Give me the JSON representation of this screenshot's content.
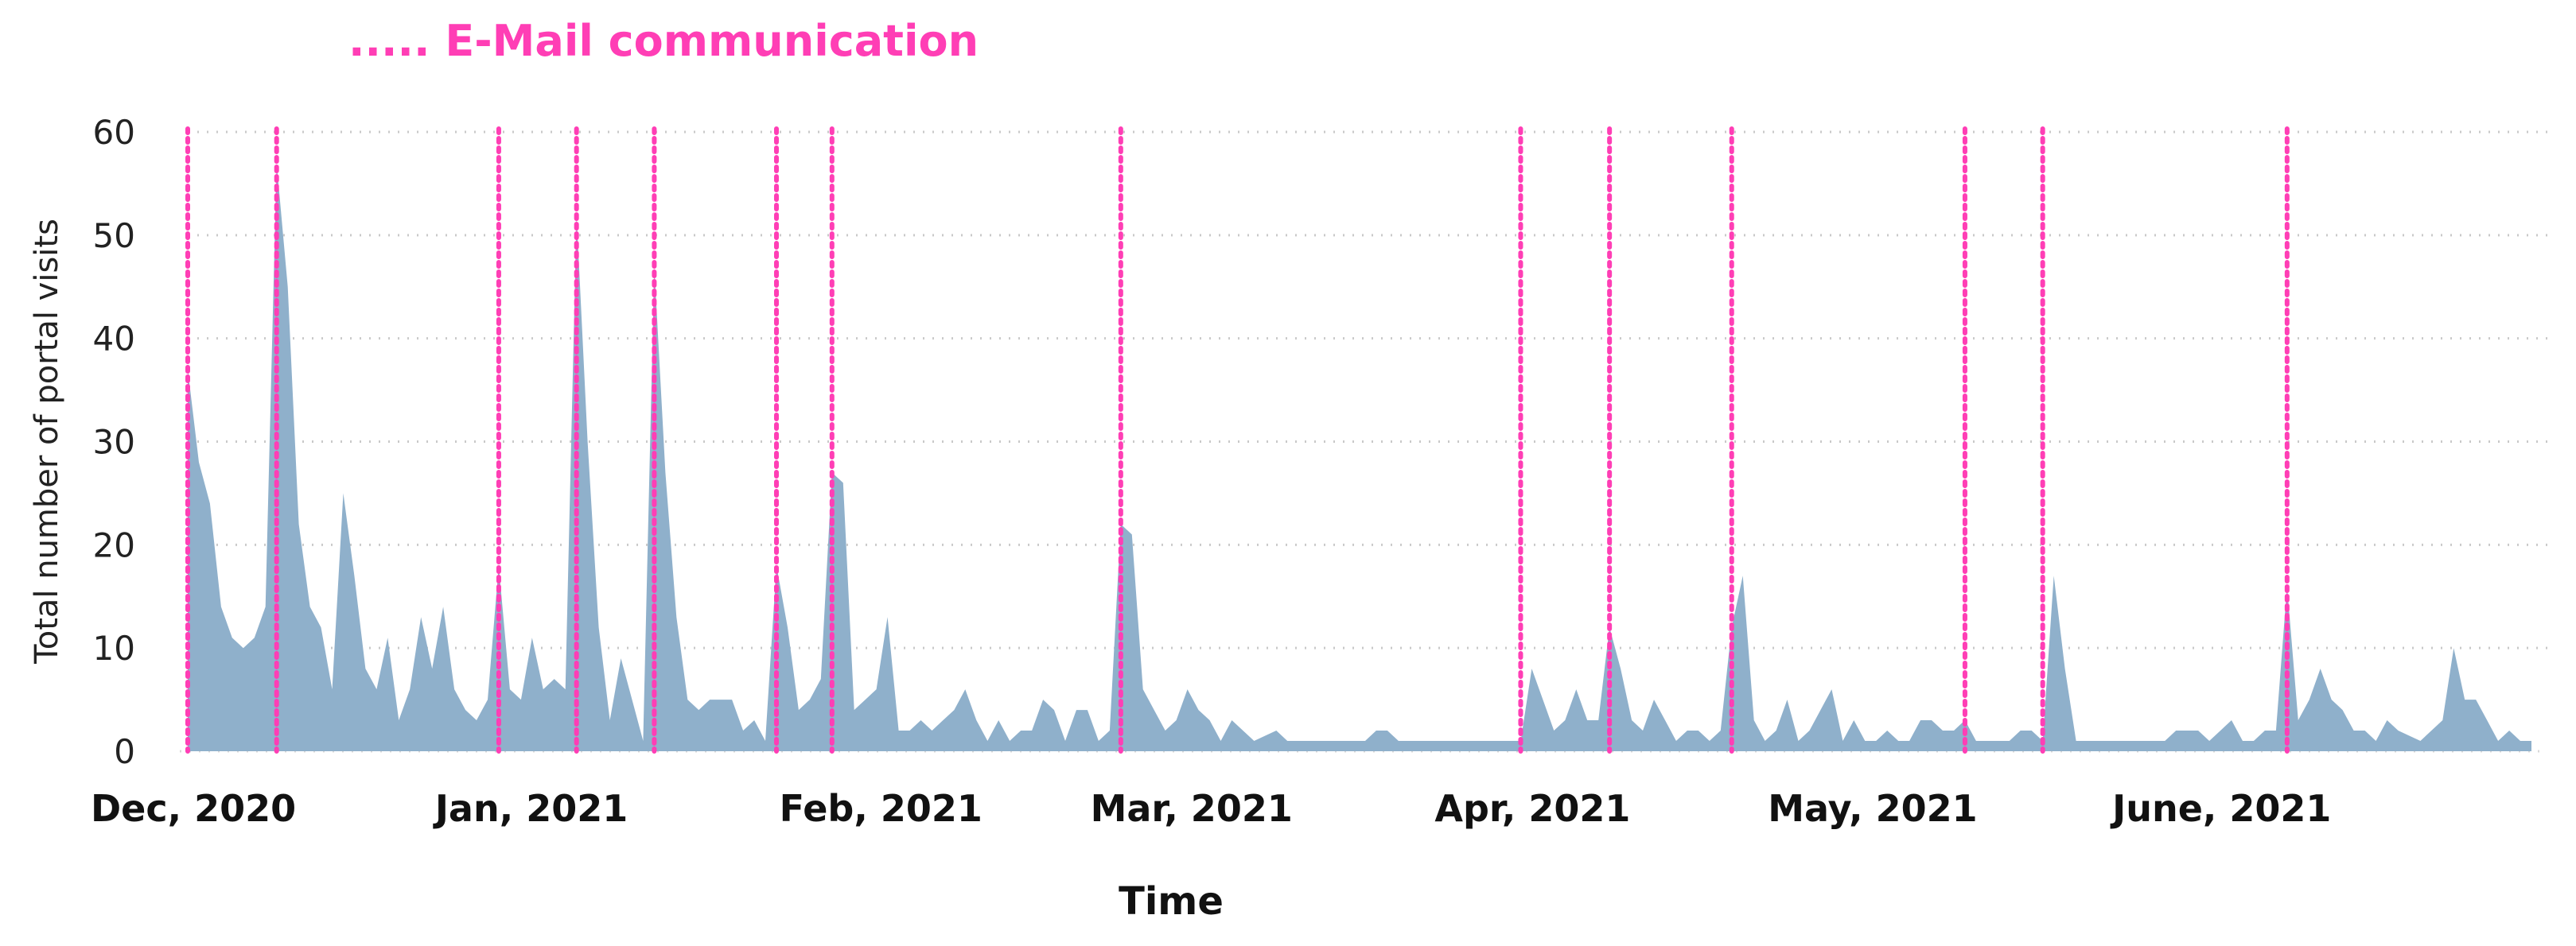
{
  "legend": {
    "label": "..... E-Mail communication",
    "color": "#ff3eb5"
  },
  "chart_data": {
    "type": "area",
    "xlabel": "Time",
    "ylabel": "Total number of portal visits",
    "ylim": [
      0,
      60
    ],
    "y_ticks": [
      0,
      10,
      20,
      30,
      40,
      50,
      60
    ],
    "grid": "horizontal dotted",
    "area_color": "#8fb0cb",
    "x_range": [
      "2020-12-01",
      "2021-06-30"
    ],
    "x_tick_labels": [
      {
        "label": "Dec, 2020",
        "date": "2020-12-01"
      },
      {
        "label": "Jan, 2021",
        "date": "2021-01-01"
      },
      {
        "label": "Feb, 2021",
        "date": "2021-02-01"
      },
      {
        "label": "Mar, 2021",
        "date": "2021-03-01"
      },
      {
        "label": "Apr, 2021",
        "date": "2021-04-01"
      },
      {
        "label": "May, 2021",
        "date": "2021-05-01"
      },
      {
        "label": "June, 2021",
        "date": "2021-06-01"
      }
    ],
    "series": [
      {
        "points": [
          [
            "2020-12-01",
            37
          ],
          [
            "2020-12-02",
            28
          ],
          [
            "2020-12-03",
            24
          ],
          [
            "2020-12-04",
            14
          ],
          [
            "2020-12-05",
            11
          ],
          [
            "2020-12-06",
            10
          ],
          [
            "2020-12-07",
            11
          ],
          [
            "2020-12-08",
            14
          ],
          [
            "2020-12-09",
            57
          ],
          [
            "2020-12-10",
            45
          ],
          [
            "2020-12-11",
            22
          ],
          [
            "2020-12-12",
            14
          ],
          [
            "2020-12-13",
            12
          ],
          [
            "2020-12-14",
            6
          ],
          [
            "2020-12-15",
            25
          ],
          [
            "2020-12-16",
            17
          ],
          [
            "2020-12-17",
            8
          ],
          [
            "2020-12-18",
            6
          ],
          [
            "2020-12-19",
            11
          ],
          [
            "2020-12-20",
            3
          ],
          [
            "2020-12-21",
            6
          ],
          [
            "2020-12-22",
            13
          ],
          [
            "2020-12-23",
            8
          ],
          [
            "2020-12-24",
            14
          ],
          [
            "2020-12-25",
            6
          ],
          [
            "2020-12-26",
            4
          ],
          [
            "2020-12-27",
            3
          ],
          [
            "2020-12-28",
            5
          ],
          [
            "2020-12-29",
            18
          ],
          [
            "2020-12-30",
            6
          ],
          [
            "2020-12-31",
            5
          ],
          [
            "2021-01-01",
            11
          ],
          [
            "2021-01-02",
            6
          ],
          [
            "2021-01-03",
            7
          ],
          [
            "2021-01-04",
            6
          ],
          [
            "2021-01-05",
            52
          ],
          [
            "2021-01-06",
            30
          ],
          [
            "2021-01-07",
            12
          ],
          [
            "2021-01-08",
            3
          ],
          [
            "2021-01-09",
            9
          ],
          [
            "2021-01-10",
            5
          ],
          [
            "2021-01-11",
            1
          ],
          [
            "2021-01-12",
            47
          ],
          [
            "2021-01-13",
            27
          ],
          [
            "2021-01-14",
            13
          ],
          [
            "2021-01-15",
            5
          ],
          [
            "2021-01-16",
            4
          ],
          [
            "2021-01-17",
            5
          ],
          [
            "2021-01-18",
            5
          ],
          [
            "2021-01-19",
            5
          ],
          [
            "2021-01-20",
            2
          ],
          [
            "2021-01-21",
            3
          ],
          [
            "2021-01-22",
            1
          ],
          [
            "2021-01-23",
            18
          ],
          [
            "2021-01-24",
            12
          ],
          [
            "2021-01-25",
            4
          ],
          [
            "2021-01-26",
            5
          ],
          [
            "2021-01-27",
            7
          ],
          [
            "2021-01-28",
            27
          ],
          [
            "2021-01-29",
            26
          ],
          [
            "2021-01-30",
            4
          ],
          [
            "2021-01-31",
            5
          ],
          [
            "2021-02-01",
            6
          ],
          [
            "2021-02-02",
            13
          ],
          [
            "2021-02-03",
            2
          ],
          [
            "2021-02-04",
            2
          ],
          [
            "2021-02-05",
            3
          ],
          [
            "2021-02-06",
            2
          ],
          [
            "2021-02-07",
            3
          ],
          [
            "2021-02-08",
            4
          ],
          [
            "2021-02-09",
            6
          ],
          [
            "2021-02-10",
            3
          ],
          [
            "2021-02-11",
            1
          ],
          [
            "2021-02-12",
            3
          ],
          [
            "2021-02-13",
            1
          ],
          [
            "2021-02-14",
            2
          ],
          [
            "2021-02-15",
            2
          ],
          [
            "2021-02-16",
            5
          ],
          [
            "2021-02-17",
            4
          ],
          [
            "2021-02-18",
            1
          ],
          [
            "2021-02-19",
            4
          ],
          [
            "2021-02-20",
            4
          ],
          [
            "2021-02-21",
            1
          ],
          [
            "2021-02-22",
            2
          ],
          [
            "2021-02-23",
            22
          ],
          [
            "2021-02-24",
            21
          ],
          [
            "2021-02-25",
            6
          ],
          [
            "2021-02-26",
            4
          ],
          [
            "2021-02-27",
            2
          ],
          [
            "2021-02-28",
            3
          ],
          [
            "2021-03-01",
            6
          ],
          [
            "2021-03-02",
            4
          ],
          [
            "2021-03-03",
            3
          ],
          [
            "2021-03-04",
            1
          ],
          [
            "2021-03-05",
            3
          ],
          [
            "2021-03-06",
            2
          ],
          [
            "2021-03-07",
            1
          ],
          [
            "2021-03-08",
            1.5
          ],
          [
            "2021-03-09",
            2
          ],
          [
            "2021-03-10",
            1
          ],
          [
            "2021-03-11",
            1
          ],
          [
            "2021-03-12",
            1
          ],
          [
            "2021-03-13",
            1
          ],
          [
            "2021-03-14",
            1
          ],
          [
            "2021-03-15",
            1
          ],
          [
            "2021-03-16",
            1
          ],
          [
            "2021-03-17",
            1
          ],
          [
            "2021-03-18",
            2
          ],
          [
            "2021-03-19",
            2
          ],
          [
            "2021-03-20",
            1
          ],
          [
            "2021-03-21",
            1
          ],
          [
            "2021-03-22",
            1
          ],
          [
            "2021-03-23",
            1
          ],
          [
            "2021-03-24",
            1
          ],
          [
            "2021-03-25",
            1
          ],
          [
            "2021-03-26",
            1
          ],
          [
            "2021-03-27",
            1
          ],
          [
            "2021-03-28",
            1
          ],
          [
            "2021-03-29",
            1
          ],
          [
            "2021-03-30",
            1
          ],
          [
            "2021-03-31",
            1
          ],
          [
            "2021-04-01",
            8
          ],
          [
            "2021-04-02",
            5
          ],
          [
            "2021-04-03",
            2
          ],
          [
            "2021-04-04",
            3
          ],
          [
            "2021-04-05",
            6
          ],
          [
            "2021-04-06",
            3
          ],
          [
            "2021-04-07",
            3
          ],
          [
            "2021-04-08",
            12
          ],
          [
            "2021-04-09",
            8
          ],
          [
            "2021-04-10",
            3
          ],
          [
            "2021-04-11",
            2
          ],
          [
            "2021-04-12",
            5
          ],
          [
            "2021-04-13",
            3
          ],
          [
            "2021-04-14",
            1
          ],
          [
            "2021-04-15",
            2
          ],
          [
            "2021-04-16",
            2
          ],
          [
            "2021-04-17",
            1
          ],
          [
            "2021-04-18",
            2
          ],
          [
            "2021-04-19",
            12
          ],
          [
            "2021-04-20",
            17
          ],
          [
            "2021-04-21",
            3
          ],
          [
            "2021-04-22",
            1
          ],
          [
            "2021-04-23",
            2
          ],
          [
            "2021-04-24",
            5
          ],
          [
            "2021-04-25",
            1
          ],
          [
            "2021-04-26",
            2
          ],
          [
            "2021-04-27",
            4
          ],
          [
            "2021-04-28",
            6
          ],
          [
            "2021-04-29",
            1
          ],
          [
            "2021-04-30",
            3
          ],
          [
            "2021-05-01",
            1
          ],
          [
            "2021-05-02",
            1
          ],
          [
            "2021-05-03",
            2
          ],
          [
            "2021-05-04",
            1
          ],
          [
            "2021-05-05",
            1
          ],
          [
            "2021-05-06",
            3
          ],
          [
            "2021-05-07",
            3
          ],
          [
            "2021-05-08",
            2
          ],
          [
            "2021-05-09",
            2
          ],
          [
            "2021-05-10",
            3
          ],
          [
            "2021-05-11",
            1
          ],
          [
            "2021-05-12",
            1
          ],
          [
            "2021-05-13",
            1
          ],
          [
            "2021-05-14",
            1
          ],
          [
            "2021-05-15",
            2
          ],
          [
            "2021-05-16",
            2
          ],
          [
            "2021-05-17",
            1
          ],
          [
            "2021-05-18",
            17
          ],
          [
            "2021-05-19",
            8
          ],
          [
            "2021-05-20",
            1
          ],
          [
            "2021-05-21",
            1
          ],
          [
            "2021-05-22",
            1
          ],
          [
            "2021-05-23",
            1
          ],
          [
            "2021-05-24",
            1
          ],
          [
            "2021-05-25",
            1
          ],
          [
            "2021-05-26",
            1
          ],
          [
            "2021-05-27",
            1
          ],
          [
            "2021-05-28",
            1
          ],
          [
            "2021-05-29",
            2
          ],
          [
            "2021-05-30",
            2
          ],
          [
            "2021-05-31",
            2
          ],
          [
            "2021-06-01",
            1
          ],
          [
            "2021-06-02",
            2
          ],
          [
            "2021-06-03",
            3
          ],
          [
            "2021-06-04",
            1
          ],
          [
            "2021-06-05",
            1
          ],
          [
            "2021-06-06",
            2
          ],
          [
            "2021-06-07",
            2
          ],
          [
            "2021-06-08",
            16
          ],
          [
            "2021-06-09",
            3
          ],
          [
            "2021-06-10",
            5
          ],
          [
            "2021-06-11",
            8
          ],
          [
            "2021-06-12",
            5
          ],
          [
            "2021-06-13",
            4
          ],
          [
            "2021-06-14",
            2
          ],
          [
            "2021-06-15",
            2
          ],
          [
            "2021-06-16",
            1
          ],
          [
            "2021-06-17",
            3
          ],
          [
            "2021-06-18",
            2
          ],
          [
            "2021-06-19",
            1.5
          ],
          [
            "2021-06-20",
            1
          ],
          [
            "2021-06-21",
            2
          ],
          [
            "2021-06-22",
            3
          ],
          [
            "2021-06-23",
            10
          ],
          [
            "2021-06-24",
            5
          ],
          [
            "2021-06-25",
            5
          ],
          [
            "2021-06-26",
            3
          ],
          [
            "2021-06-27",
            1
          ],
          [
            "2021-06-28",
            2
          ],
          [
            "2021-06-29",
            1
          ],
          [
            "2021-06-30",
            1
          ]
        ]
      }
    ],
    "email_dates": [
      "2020-12-01",
      "2020-12-09",
      "2020-12-29",
      "2021-01-05",
      "2021-01-12",
      "2021-01-23",
      "2021-01-28",
      "2021-02-23",
      "2021-03-31",
      "2021-04-08",
      "2021-04-19",
      "2021-05-10",
      "2021-05-17",
      "2021-06-08"
    ]
  }
}
